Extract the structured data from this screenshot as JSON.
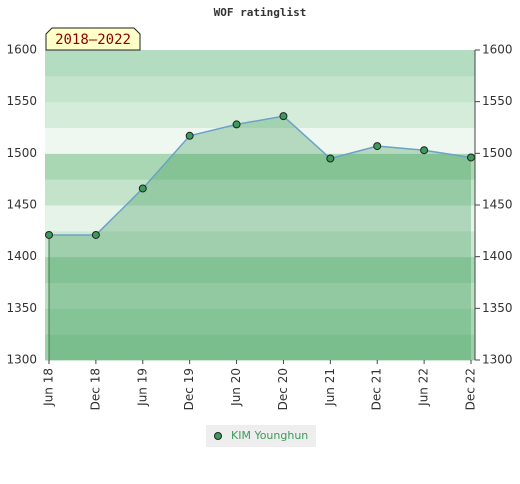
{
  "chart_data": {
    "type": "line",
    "title": "WOF ratinglist",
    "annotation": "2018–2022",
    "categories": [
      "Jun 18",
      "Dec 18",
      "Jun 19",
      "Dec 19",
      "Jun 20",
      "Dec 20",
      "Jun 21",
      "Dec 21",
      "Jun 22",
      "Dec 22"
    ],
    "series": [
      {
        "name": "KIM Younghun",
        "color": "#3c9a5a",
        "values": [
          1421,
          1421,
          1466,
          1517,
          1528,
          1536,
          1495,
          1507,
          1503,
          1496
        ]
      }
    ],
    "ylim": [
      1300,
      1600
    ],
    "yticks": [
      1300,
      1350,
      1400,
      1450,
      1500,
      1550,
      1600
    ]
  }
}
